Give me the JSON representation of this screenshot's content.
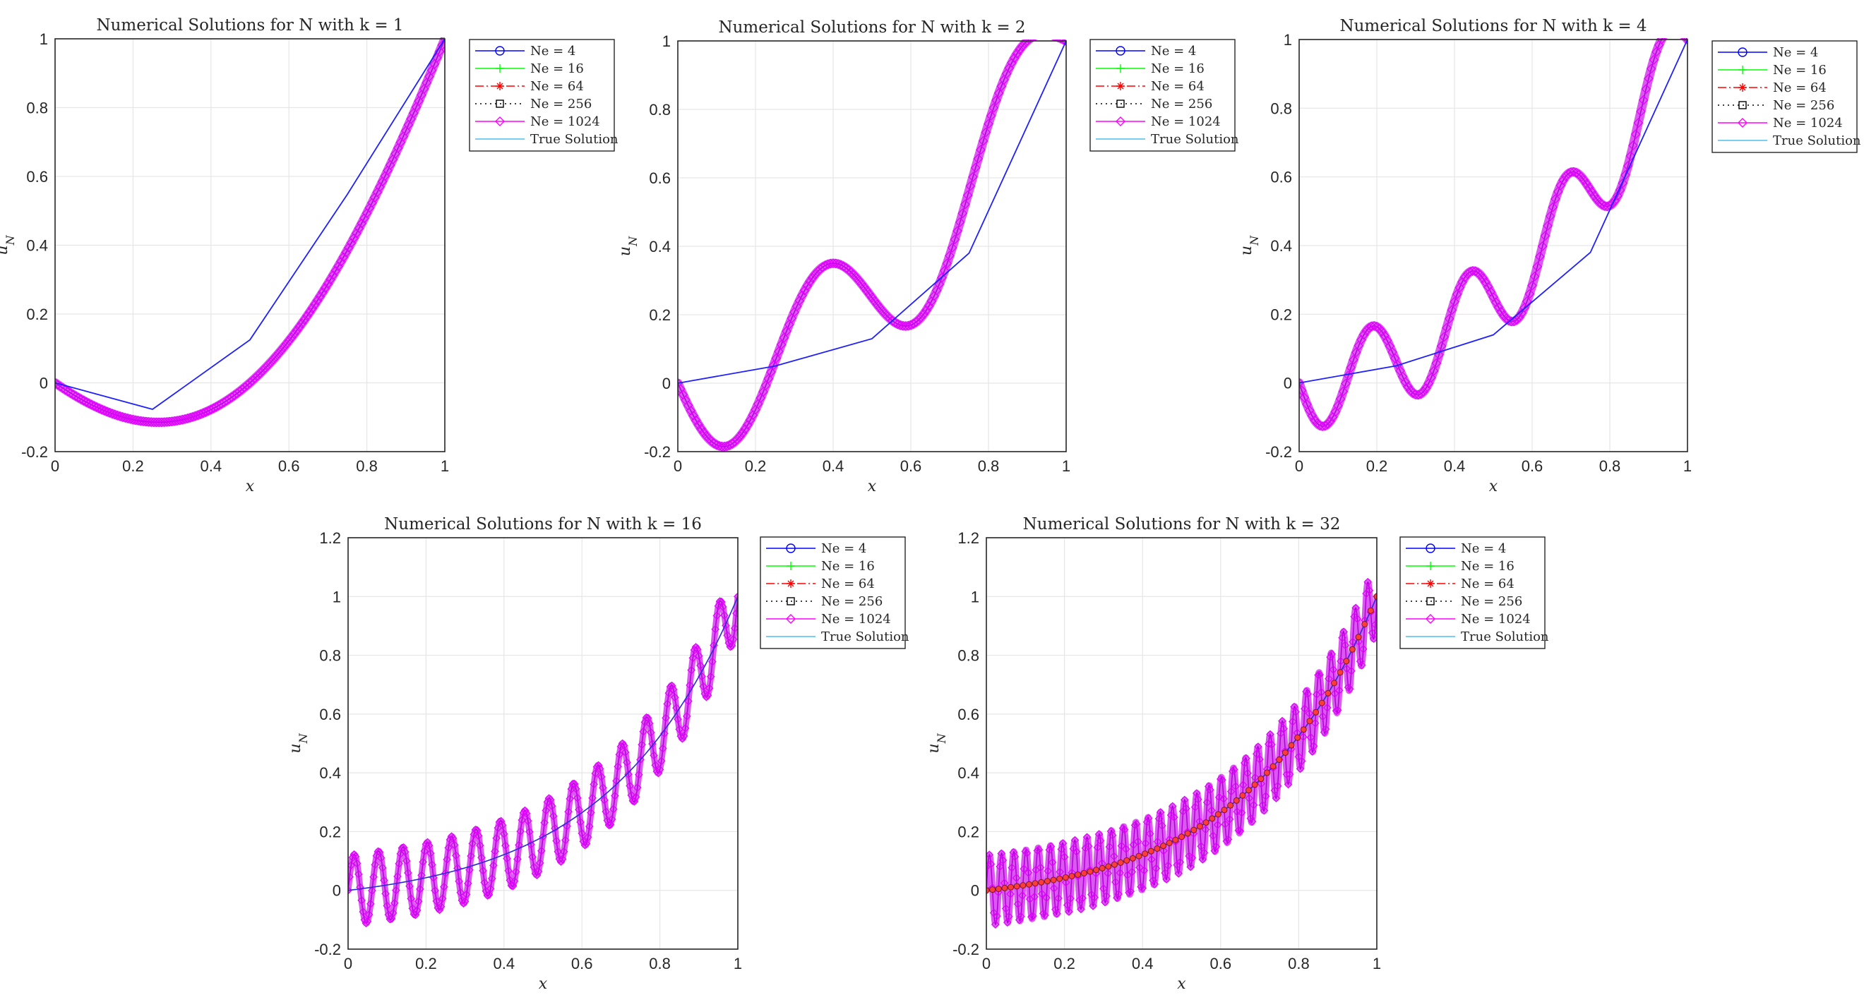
{
  "figure": {
    "title_prefix": "Numerical Solutions for",
    "title_var": "N",
    "title_mid": "with",
    "title_k_symbol": "k",
    "title_eq": "="
  },
  "legend_entries": [
    {
      "label": "Ne = 4",
      "color": "#0000ff",
      "marker": "circle",
      "dash": "solid"
    },
    {
      "label": "Ne = 16",
      "color": "#00ff00",
      "marker": "plus",
      "dash": "solid"
    },
    {
      "label": "Ne = 64",
      "color": "#ff0000",
      "marker": "asterisk",
      "dash": "dashdot"
    },
    {
      "label": "Ne = 256",
      "color": "#000000",
      "marker": "square",
      "dash": "dotted"
    },
    {
      "label": "Ne = 1024",
      "color": "#ff00ff",
      "marker": "diamond",
      "dash": "solid"
    },
    {
      "label": "True Solution",
      "color": "#4dbeee",
      "marker": "none",
      "dash": "solid"
    }
  ],
  "chart_data": [
    {
      "type": "line",
      "k": 1,
      "title": "Numerical Solutions for N with k = 1",
      "xlabel": "x",
      "ylabel": "u_N",
      "xlim": [
        0,
        1
      ],
      "ylim": [
        -0.2,
        1
      ],
      "xticks": [
        0,
        0.2,
        0.4,
        0.6,
        0.8,
        1
      ],
      "yticks": [
        -0.2,
        0,
        0.2,
        0.4,
        0.6,
        0.8,
        1
      ],
      "xtick_labels": [
        "0",
        "0.2",
        "0.4",
        "0.6",
        "0.8",
        "1"
      ],
      "ytick_labels": [
        "-0.2",
        "0",
        "0.2",
        "0.4",
        "0.6",
        "0.8",
        "1"
      ],
      "grid": true,
      "legend_position": "outside-top-right",
      "series": [
        {
          "name": "Ne = 4",
          "x": [
            0,
            0.25,
            0.5,
            0.75,
            1
          ],
          "y": [
            0,
            -0.077,
            0.125,
            0.548,
            1
          ]
        },
        {
          "name": "Ne = 1024 (and Ne = 16, 64, 256, True Solution overlap)",
          "function": "u(x) = x^2 - 0.25*sin(pi*x)",
          "domain": [
            0,
            1
          ]
        }
      ]
    },
    {
      "type": "line",
      "k": 2,
      "title": "Numerical Solutions for N with k = 2",
      "xlabel": "x",
      "ylabel": "u_N",
      "xlim": [
        0,
        1
      ],
      "ylim": [
        -0.2,
        1
      ],
      "xticks": [
        0,
        0.2,
        0.4,
        0.6,
        0.8,
        1
      ],
      "yticks": [
        -0.2,
        0,
        0.2,
        0.4,
        0.6,
        0.8,
        1
      ],
      "xtick_labels": [
        "0",
        "0.2",
        "0.4",
        "0.6",
        "0.8",
        "1"
      ],
      "ytick_labels": [
        "-0.2",
        "0",
        "0.2",
        "0.4",
        "0.6",
        "0.8",
        "1"
      ],
      "grid": true,
      "legend_position": "outside-top-right",
      "series": [
        {
          "name": "Ne = 4",
          "x": [
            0,
            0.25,
            0.5,
            0.75,
            1
          ],
          "y": [
            0,
            0.05,
            0.13,
            0.38,
            1
          ]
        },
        {
          "name": "Ne = 1024 (and Ne = 16, 64, 256, True Solution overlap)",
          "function": "u(x) = x^2 - 0.2*sin(4*pi*x)",
          "domain": [
            0,
            1
          ]
        }
      ]
    },
    {
      "type": "line",
      "k": 4,
      "title": "Numerical Solutions for N with k = 4",
      "xlabel": "x",
      "ylabel": "u_N",
      "xlim": [
        0,
        1
      ],
      "ylim": [
        -0.2,
        1
      ],
      "xticks": [
        0,
        0.2,
        0.4,
        0.6,
        0.8,
        1
      ],
      "yticks": [
        -0.2,
        0,
        0.2,
        0.4,
        0.6,
        0.8,
        1
      ],
      "xtick_labels": [
        "0",
        "0.2",
        "0.4",
        "0.6",
        "0.8",
        "1"
      ],
      "ytick_labels": [
        "-0.2",
        "0",
        "0.2",
        "0.4",
        "0.6",
        "0.8",
        "1"
      ],
      "grid": true,
      "legend_position": "outside-top-right",
      "series": [
        {
          "name": "Ne = 4",
          "x": [
            0,
            0.25,
            0.5,
            0.75,
            1
          ],
          "y": [
            0,
            0.05,
            0.14,
            0.38,
            1
          ]
        },
        {
          "name": "Ne = 1024 (and Ne = 16, 64, 256, True Solution overlap)",
          "function": "u(x) = x^2 - 0.13*sin(8*pi*x)",
          "domain": [
            0,
            1
          ]
        }
      ]
    },
    {
      "type": "line",
      "k": 16,
      "title": "Numerical Solutions for N with k = 16",
      "xlabel": "x",
      "ylabel": "u_N",
      "xlim": [
        0,
        1
      ],
      "ylim": [
        -0.2,
        1.2
      ],
      "xticks": [
        0,
        0.2,
        0.4,
        0.6,
        0.8,
        1
      ],
      "yticks": [
        -0.2,
        0,
        0.2,
        0.4,
        0.6,
        0.8,
        1,
        1.2
      ],
      "xtick_labels": [
        "0",
        "0.2",
        "0.4",
        "0.6",
        "0.8",
        "1"
      ],
      "ytick_labels": [
        "-0.2",
        "0",
        "0.2",
        "0.4",
        "0.6",
        "0.8",
        "1",
        "1.2"
      ],
      "grid": true,
      "legend_position": "outside-top-right",
      "series": [
        {
          "name": "Ne = 4 (and True Solution)",
          "function": "u(x) = (e^(3x) - 1)/(e^3 - 1)",
          "domain": [
            0,
            1
          ]
        },
        {
          "name": "Ne = 1024",
          "function": "u(x) = (e^(3x) - 1)/(e^3 - 1) + 0.12*sin(32*pi*x)",
          "domain": [
            0,
            1
          ]
        }
      ]
    },
    {
      "type": "line",
      "k": 32,
      "title": "Numerical Solutions for N with k = 32",
      "xlabel": "x",
      "ylabel": "u_N",
      "xlim": [
        0,
        1
      ],
      "ylim": [
        -0.2,
        1.2
      ],
      "xticks": [
        0,
        0.2,
        0.4,
        0.6,
        0.8,
        1
      ],
      "yticks": [
        -0.2,
        0,
        0.2,
        0.4,
        0.6,
        0.8,
        1,
        1.2
      ],
      "xtick_labels": [
        "0",
        "0.2",
        "0.4",
        "0.6",
        "0.8",
        "1"
      ],
      "ytick_labels": [
        "-0.2",
        "0",
        "0.2",
        "0.4",
        "0.6",
        "0.8",
        "1",
        "1.2"
      ],
      "grid": true,
      "legend_position": "outside-top-right",
      "series": [
        {
          "name": "Ne = 4 / Ne = 64 (and True Solution)",
          "function": "u(x) = (e^(3x) - 1)/(e^3 - 1)",
          "domain": [
            0,
            1
          ]
        },
        {
          "name": "Ne = 1024",
          "function": "u(x) = (e^(3x) - 1)/(e^3 - 1) + 0.12*sin(64*pi*x)",
          "domain": [
            0,
            1
          ]
        }
      ]
    }
  ]
}
